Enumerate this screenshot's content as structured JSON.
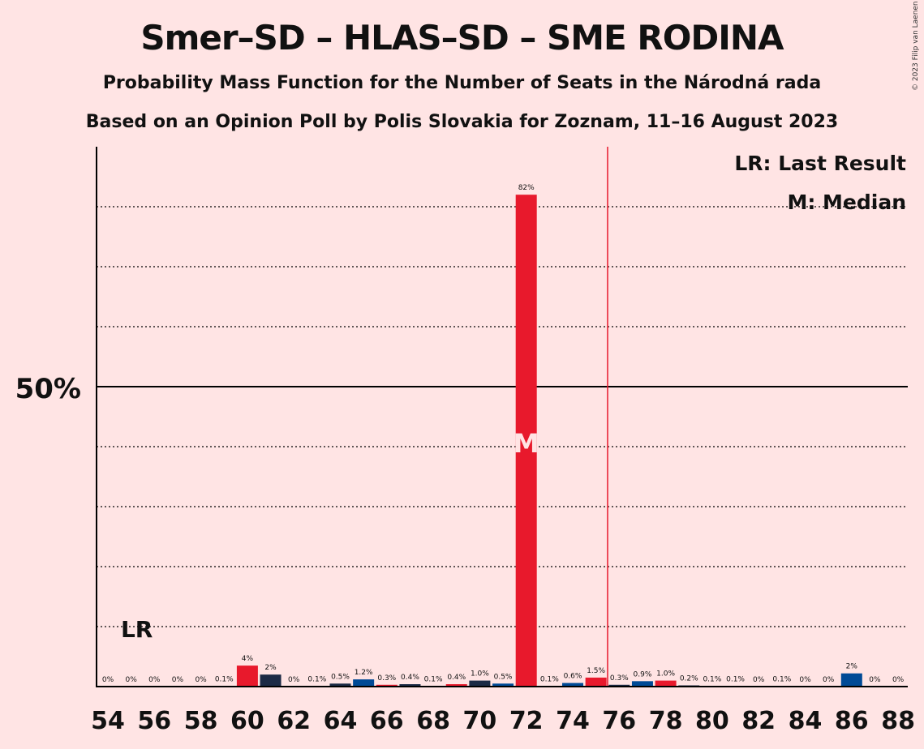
{
  "chart_data": {
    "type": "bar",
    "title": "Smer–SD – HLAS–SD – SME RODINA",
    "subtitle": "Probability Mass Function for the Number of Seats in the Národná rada",
    "subtitle2": "Based on an Opinion Poll by Polis Slovakia for Zoznam, 11–16 August 2023",
    "copyright": "© 2023 Filip van Laenen",
    "ytick_label": "50%",
    "ylim": [
      0,
      90
    ],
    "grid": "dotted every 10%, solid at 50%",
    "legend": [
      "LR: Last Result",
      "M: Median"
    ],
    "legend_placement": "top-right",
    "last_result_seats": 55,
    "last_result_label": "LR",
    "median_seats": 72,
    "median_label": "M",
    "majority_line_seats": 75.5,
    "x_tick_labels": [
      "54",
      "56",
      "58",
      "60",
      "62",
      "64",
      "66",
      "68",
      "70",
      "72",
      "74",
      "76",
      "78",
      "80",
      "82",
      "84",
      "86",
      "88"
    ],
    "bars": [
      {
        "seats": 54,
        "value": 0,
        "label": "0%",
        "color": "#E8192C"
      },
      {
        "seats": 55,
        "value": 0,
        "label": "0%",
        "color": "#1C2A45"
      },
      {
        "seats": 56,
        "value": 0,
        "label": "0%",
        "color": "#004A96"
      },
      {
        "seats": 57,
        "value": 0,
        "label": "0%",
        "color": "#E8192C"
      },
      {
        "seats": 58,
        "value": 0,
        "label": "0%",
        "color": "#1C2A45"
      },
      {
        "seats": 59,
        "value": 0.1,
        "label": "0.1%",
        "color": "#004A96"
      },
      {
        "seats": 60,
        "value": 3.5,
        "label": "4%",
        "color": "#E8192C"
      },
      {
        "seats": 61,
        "value": 2.0,
        "label": "2%",
        "color": "#1C2A45"
      },
      {
        "seats": 62,
        "value": 0,
        "label": "0%",
        "color": "#004A96"
      },
      {
        "seats": 63,
        "value": 0.1,
        "label": "0.1%",
        "color": "#E8192C"
      },
      {
        "seats": 64,
        "value": 0.5,
        "label": "0.5%",
        "color": "#1C2A45"
      },
      {
        "seats": 65,
        "value": 1.2,
        "label": "1.2%",
        "color": "#004A96"
      },
      {
        "seats": 66,
        "value": 0.3,
        "label": "0.3%",
        "color": "#E8192C"
      },
      {
        "seats": 67,
        "value": 0.4,
        "label": "0.4%",
        "color": "#1C2A45"
      },
      {
        "seats": 68,
        "value": 0.1,
        "label": "0.1%",
        "color": "#004A96"
      },
      {
        "seats": 69,
        "value": 0.4,
        "label": "0.4%",
        "color": "#E8192C"
      },
      {
        "seats": 70,
        "value": 1.0,
        "label": "1.0%",
        "color": "#1C2A45"
      },
      {
        "seats": 71,
        "value": 0.5,
        "label": "0.5%",
        "color": "#004A96"
      },
      {
        "seats": 72,
        "value": 82,
        "label": "82%",
        "color": "#E8192C"
      },
      {
        "seats": 73,
        "value": 0.1,
        "label": "0.1%",
        "color": "#1C2A45"
      },
      {
        "seats": 74,
        "value": 0.6,
        "label": "0.6%",
        "color": "#004A96"
      },
      {
        "seats": 75,
        "value": 1.5,
        "label": "1.5%",
        "color": "#E8192C"
      },
      {
        "seats": 76,
        "value": 0.3,
        "label": "0.3%",
        "color": "#1C2A45"
      },
      {
        "seats": 77,
        "value": 0.9,
        "label": "0.9%",
        "color": "#004A96"
      },
      {
        "seats": 78,
        "value": 1.0,
        "label": "1.0%",
        "color": "#E8192C"
      },
      {
        "seats": 79,
        "value": 0.2,
        "label": "0.2%",
        "color": "#1C2A45"
      },
      {
        "seats": 80,
        "value": 0.1,
        "label": "0.1%",
        "color": "#004A96"
      },
      {
        "seats": 81,
        "value": 0.1,
        "label": "0.1%",
        "color": "#E8192C"
      },
      {
        "seats": 82,
        "value": 0,
        "label": "0%",
        "color": "#1C2A45"
      },
      {
        "seats": 83,
        "value": 0.1,
        "label": "0.1%",
        "color": "#004A96"
      },
      {
        "seats": 84,
        "value": 0,
        "label": "0%",
        "color": "#E8192C"
      },
      {
        "seats": 85,
        "value": 0,
        "label": "0%",
        "color": "#1C2A45"
      },
      {
        "seats": 86,
        "value": 2.2,
        "label": "2%",
        "color": "#004A96"
      },
      {
        "seats": 87,
        "value": 0,
        "label": "0%",
        "color": "#E8192C"
      },
      {
        "seats": 88,
        "value": 0,
        "label": "0%",
        "color": "#1C2A45"
      }
    ],
    "colors": {
      "background": "#FFE4E4",
      "majority_line": "#E8192C",
      "median_marker": "#FFE4E4"
    }
  }
}
